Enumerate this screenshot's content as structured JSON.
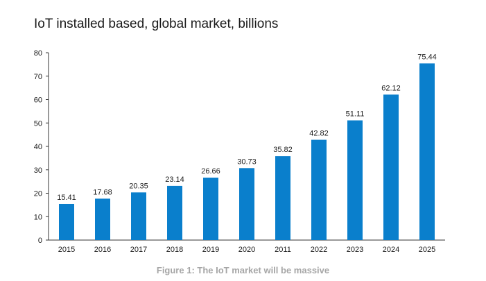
{
  "chart_data": {
    "type": "bar",
    "title": "IoT installed based, global market, billions",
    "caption": "Figure 1: The IoT market will be massive",
    "categories": [
      "2015",
      "2016",
      "2017",
      "2018",
      "2019",
      "2020",
      "2011",
      "2022",
      "2023",
      "2024",
      "2025"
    ],
    "values": [
      15.41,
      17.68,
      20.35,
      23.14,
      26.66,
      30.73,
      35.82,
      42.82,
      51.11,
      62.12,
      75.44
    ],
    "value_labels": [
      "15.41",
      "17.68",
      "20.35",
      "23.14",
      "26.66",
      "30.73",
      "35.82",
      "42.82",
      "51.11",
      "62.12",
      "75.44"
    ],
    "ylim": [
      0,
      80
    ],
    "yticks": [
      "0",
      "10",
      "20",
      "30",
      "40",
      "50",
      "60",
      "70",
      "80"
    ],
    "xlabel": "",
    "ylabel": "",
    "grid": false,
    "legend": "none",
    "bar_color": "#0a7fcc"
  }
}
